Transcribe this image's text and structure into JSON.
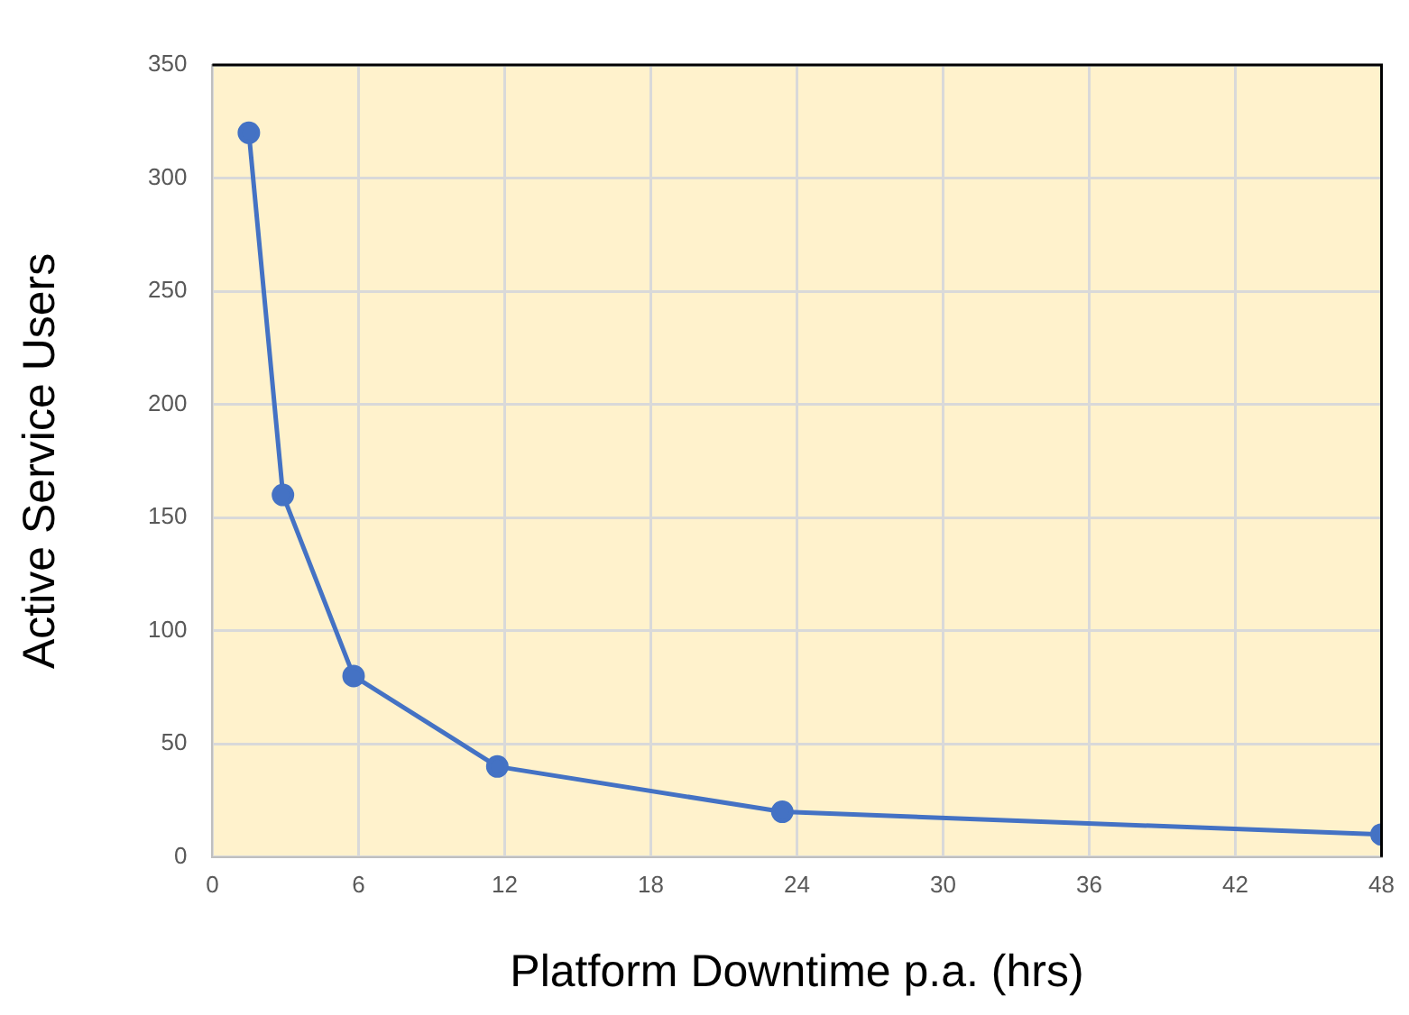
{
  "chart_data": {
    "type": "line",
    "xlabel": "Platform Downtime p.a. (hrs)",
    "ylabel": "Active Service Users",
    "x": [
      1.5,
      2.9,
      5.8,
      11.7,
      23.4,
      48
    ],
    "series": [
      {
        "color": "#4472c4",
        "values": [
          320,
          160,
          80,
          40,
          20,
          10
        ]
      }
    ],
    "xlim": [
      0,
      48
    ],
    "xticks": [
      0,
      6,
      12,
      18,
      24,
      30,
      36,
      42,
      48
    ],
    "ylim": [
      0,
      350
    ],
    "yticks": [
      0,
      50,
      100,
      150,
      200,
      250,
      300,
      350
    ],
    "grid": true,
    "legend": false,
    "marker": "circle",
    "line_style": "solid"
  }
}
